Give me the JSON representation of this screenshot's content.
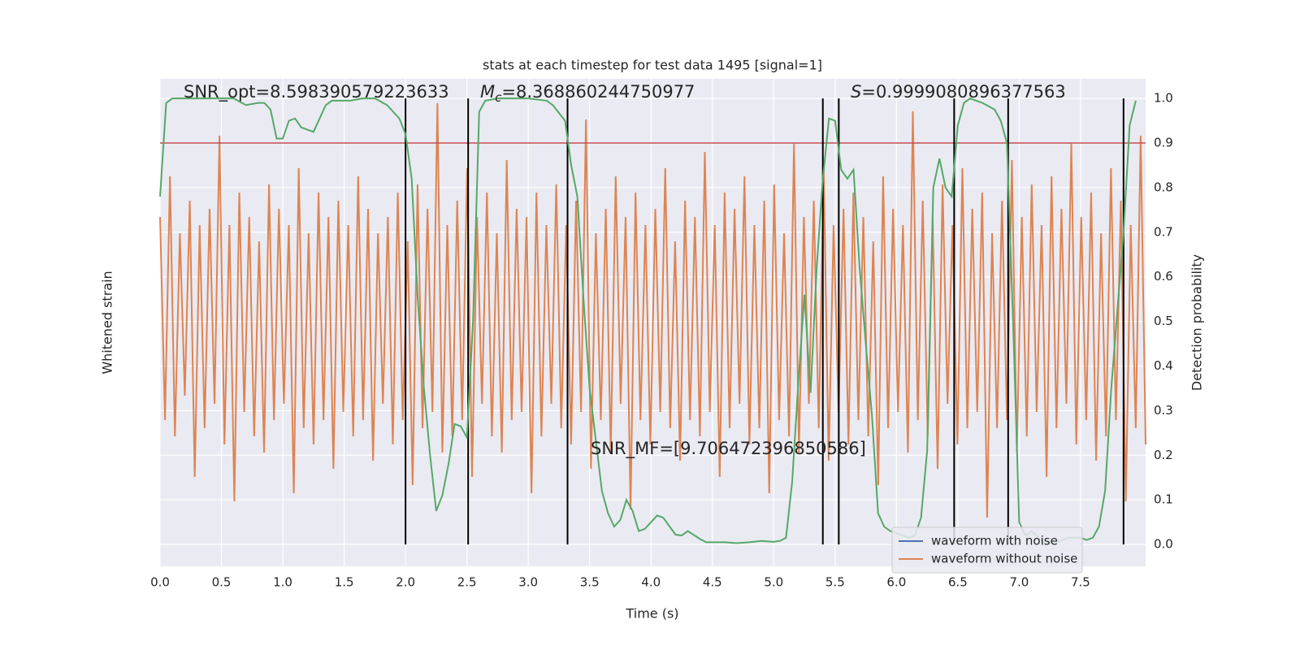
{
  "chart_data": {
    "type": "line",
    "title": "stats at each timestep for test data 1495 [signal=1]",
    "xlabel": "Time (s)",
    "ylabel": "Whitened strain",
    "y2label": "Detection probability",
    "xlim": [
      0,
      8.03
    ],
    "xticks": [
      {
        "value": 0,
        "label": "0.0"
      },
      0.5,
      {
        "value": 1,
        "label": "1.0"
      },
      1.5,
      {
        "value": 2,
        "label": "2.0"
      },
      2.5,
      {
        "value": 3,
        "label": "3.0"
      },
      3.5,
      {
        "value": 4,
        "label": "4.0"
      },
      4.5,
      {
        "value": 5,
        "label": "5.0"
      },
      5.5,
      {
        "value": 6,
        "label": "6.0"
      },
      6.5,
      {
        "value": 7,
        "label": "7.0"
      },
      7.5
    ],
    "ylim": [
      -3,
      3
    ],
    "y2lim": [
      -0.049,
      1.044
    ],
    "y2ticks": [
      {
        "value": 0,
        "label": "0.0"
      },
      0.1,
      0.2,
      0.3,
      0.4,
      0.5,
      0.6,
      0.7,
      0.8,
      0.9,
      {
        "value": 1,
        "label": "1.0"
      }
    ],
    "grid": true,
    "legend": "lower right",
    "series": [
      {
        "name": "waveform with noise",
        "color": "#4c72b0",
        "values": []
      },
      {
        "name": "waveform without noise",
        "color": "#dd8452",
        "values": [
          1.3,
          -1.2,
          1.8,
          -1.4,
          1.1,
          -0.9,
          1.5,
          -1.9,
          1.2,
          -1.3,
          1.4,
          -1.0,
          2.3,
          -1.5,
          1.2,
          -2.2,
          1.6,
          -1.1,
          1.3,
          -1.4,
          1.0,
          -1.6,
          1.7,
          -1.2,
          1.4,
          -1.0,
          1.2,
          -2.1,
          1.9,
          -1.3,
          1.1,
          -1.5,
          1.6,
          -1.2,
          1.3,
          -1.8,
          1.5,
          -1.1,
          1.2,
          -1.4,
          1.8,
          -1.2,
          1.4,
          -1.7,
          1.1,
          -1.0,
          1.3,
          -1.5,
          1.6,
          -1.2,
          1.0,
          -2.0,
          1.7,
          -1.3,
          1.4,
          -1.1,
          2.7,
          -1.6,
          1.2,
          -1.4,
          1.5,
          -1.2,
          1.9,
          -1.9,
          1.3,
          -1.0,
          1.6,
          -1.4,
          1.1,
          -1.6,
          2.0,
          -1.2,
          1.4,
          -1.1,
          1.3,
          -2.1,
          1.6,
          -1.4,
          1.2,
          -1.0,
          1.7,
          -1.3,
          1.2,
          -1.5,
          1.5,
          -1.1,
          2.5,
          -1.8,
          1.1,
          -1.2,
          1.4,
          -1.6,
          1.8,
          -1.0,
          1.3,
          -2.3,
          1.6,
          -1.2,
          1.2,
          -1.5,
          1.4,
          -1.1,
          1.9,
          -1.3,
          1.0,
          -1.7,
          1.5,
          -1.2,
          1.3,
          -1.4,
          2.1,
          -1.1,
          1.2,
          -1.9,
          1.6,
          -1.3,
          1.4,
          -1.0,
          1.8,
          -1.5,
          1.2,
          -1.3,
          1.5,
          -2.1,
          1.7,
          -1.2,
          1.1,
          -1.4,
          2.2,
          -1.6,
          1.3,
          -1.0,
          1.5,
          -1.3,
          1.9,
          -1.7,
          1.2,
          -1.1,
          1.4,
          -1.5,
          1.6,
          -1.2,
          1.3,
          -1.4,
          1.0,
          -2.0,
          1.8,
          -1.3,
          1.4,
          -1.1,
          1.2,
          -1.6,
          2.6,
          -1.2,
          1.5,
          -1.4,
          1.3,
          -1.8,
          1.7,
          -1.0,
          1.2,
          -1.5,
          1.9,
          -1.3,
          1.4,
          -1.1,
          1.6,
          -2.4,
          1.1,
          -1.3,
          1.5,
          -1.2,
          2.0,
          -1.6,
          1.3,
          -1.4,
          1.7,
          -1.1,
          1.2,
          -1.9,
          1.8,
          -1.3,
          1.4,
          -1.0,
          2.2,
          -1.5,
          1.3,
          -1.2,
          1.6,
          -1.7,
          1.1,
          -1.4,
          1.9,
          -1.2,
          1.5,
          -2.2,
          1.2,
          -1.3,
          2.3,
          -1.5
        ]
      },
      {
        "color": "#55a868",
        "axis": "y2",
        "x": [
          0,
          0.05,
          0.1,
          0.4,
          0.6,
          0.7,
          0.8,
          0.85,
          0.9,
          0.95,
          1.0,
          1.05,
          1.1,
          1.15,
          1.25,
          1.35,
          1.4,
          1.55,
          1.65,
          1.75,
          1.85,
          1.95,
          2.0,
          2.05,
          2.1,
          2.15,
          2.2,
          2.25,
          2.3,
          2.35,
          2.4,
          2.45,
          2.5,
          2.55,
          2.6,
          2.65,
          2.75,
          3.0,
          3.15,
          3.2,
          3.3,
          3.35,
          3.4,
          3.45,
          3.5,
          3.6,
          3.65,
          3.7,
          3.75,
          3.8,
          3.85,
          3.9,
          3.95,
          4.05,
          4.1,
          4.2,
          4.25,
          4.3,
          4.4,
          4.45,
          4.6,
          4.7,
          4.8,
          4.9,
          5.0,
          5.05,
          5.1,
          5.15,
          5.2,
          5.25,
          5.3,
          5.35,
          5.4,
          5.45,
          5.5,
          5.55,
          5.6,
          5.65,
          5.7,
          5.75,
          5.8,
          5.85,
          5.9,
          5.95,
          6.05,
          6.1,
          6.15,
          6.2,
          6.25,
          6.3,
          6.35,
          6.4,
          6.45,
          6.5,
          6.55,
          6.6,
          6.7,
          6.8,
          6.85,
          6.9,
          6.95,
          7.0,
          7.05,
          7.1,
          7.2,
          7.3,
          7.4,
          7.5,
          7.55,
          7.6,
          7.65,
          7.7,
          7.75,
          7.85,
          7.9,
          7.95
        ],
        "values": [
          0.78,
          0.99,
          1.0,
          1.0,
          1.0,
          0.985,
          0.99,
          0.99,
          0.975,
          0.91,
          0.91,
          0.95,
          0.955,
          0.935,
          0.925,
          0.985,
          0.995,
          0.995,
          1.0,
          1.0,
          0.985,
          0.955,
          0.92,
          0.82,
          0.55,
          0.35,
          0.2,
          0.075,
          0.11,
          0.18,
          0.27,
          0.265,
          0.24,
          0.5,
          0.97,
          0.995,
          1.0,
          1.0,
          0.995,
          0.985,
          0.95,
          0.85,
          0.78,
          0.55,
          0.35,
          0.12,
          0.07,
          0.04,
          0.055,
          0.1,
          0.075,
          0.03,
          0.035,
          0.065,
          0.06,
          0.022,
          0.02,
          0.03,
          0.012,
          0.005,
          0.005,
          0.003,
          0.005,
          0.008,
          0.006,
          0.008,
          0.015,
          0.14,
          0.36,
          0.56,
          0.34,
          0.62,
          0.82,
          0.955,
          0.95,
          0.84,
          0.82,
          0.84,
          0.62,
          0.45,
          0.29,
          0.07,
          0.04,
          0.03,
          0.02,
          0.015,
          0.02,
          0.06,
          0.21,
          0.8,
          0.865,
          0.8,
          0.78,
          0.94,
          0.99,
          1.0,
          0.99,
          0.975,
          0.95,
          0.9,
          0.5,
          0.05,
          0.02,
          0.03,
          0.005,
          0.005,
          0.015,
          0.015,
          0.01,
          0.015,
          0.04,
          0.12,
          0.35,
          0.7,
          0.94,
          0.995
        ]
      }
    ],
    "threshold": {
      "value": 0.9,
      "color": "#c44e52"
    },
    "vlines": {
      "x": [
        2.0,
        2.51,
        3.32,
        5.4,
        5.53,
        6.47,
        6.91,
        7.85
      ],
      "color": "#000000"
    },
    "annotations": [
      {
        "text": "SNR_opt=8.598390579223633"
      },
      {
        "symbol": "M",
        "subscript": "c",
        "text": "=8.368860244750977"
      },
      {
        "symbol": "S",
        "text": "=0.9999080896377563"
      },
      {
        "text": "SNR_MF=[9.706472396850586]"
      }
    ]
  }
}
